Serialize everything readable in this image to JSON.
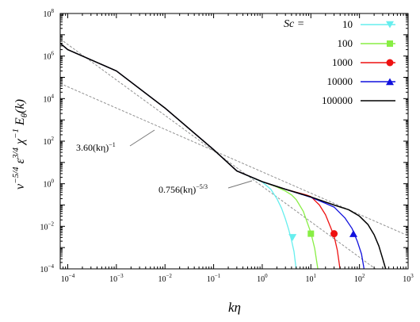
{
  "chart_data": {
    "type": "line",
    "xscale": "log",
    "yscale": "log",
    "xlim": [
      7e-05,
      1000
    ],
    "ylim": [
      0.0001,
      100000000
    ],
    "xlabel_main": "kη",
    "ylabel_parts": [
      "ν",
      "−5/4",
      " ε",
      "3/4",
      " χ",
      "−1",
      " E",
      "θ",
      "(k)"
    ],
    "x_ticks": [
      {
        "value": 0.0001,
        "base": "10",
        "exp": "−4"
      },
      {
        "value": 0.001,
        "base": "10",
        "exp": "−3"
      },
      {
        "value": 0.01,
        "base": "10",
        "exp": "−2"
      },
      {
        "value": 0.1,
        "base": "10",
        "exp": "−1"
      },
      {
        "value": 1,
        "base": "10",
        "exp": "0"
      },
      {
        "value": 10,
        "base": "10",
        "exp": "1"
      },
      {
        "value": 100,
        "base": "10",
        "exp": "2"
      },
      {
        "value": 1000,
        "base": "10",
        "exp": "3"
      }
    ],
    "y_ticks": [
      {
        "value": 0.0001,
        "base": "10",
        "exp": "−4"
      },
      {
        "value": 0.01,
        "base": "10",
        "exp": "−2"
      },
      {
        "value": 1,
        "base": "10",
        "exp": "0"
      },
      {
        "value": 100,
        "base": "10",
        "exp": "2"
      },
      {
        "value": 10000,
        "base": "10",
        "exp": "4"
      },
      {
        "value": 1000000,
        "base": "10",
        "exp": "6"
      },
      {
        "value": 100000000,
        "base": "10",
        "exp": "8"
      }
    ],
    "legend_title": "Sc =",
    "legend_position": "top-right",
    "reference_lines": [
      {
        "label_coef": "3.60(kη)",
        "label_exp": "−1",
        "coef": 3.6,
        "slope": -1,
        "color": "#909090",
        "dash": true
      },
      {
        "label_coef": "0.756(kη)",
        "label_exp": "−5/3",
        "coef": 0.756,
        "slope": -1.6667,
        "color": "#909090",
        "dash": true
      }
    ],
    "series": [
      {
        "name": "10",
        "color": "#66eeee",
        "marker": "triangle-down",
        "x": [
          7e-05,
          0.0001,
          0.001,
          0.01,
          0.1,
          0.3,
          1,
          1.5,
          2,
          2.5,
          3,
          3.5,
          4,
          4.5,
          5
        ],
        "y": [
          4000000,
          2000000,
          200000,
          3600,
          40,
          4,
          1.2,
          0.55,
          0.2,
          0.07,
          0.022,
          0.007,
          0.0022,
          0.00065,
          9e-05
        ],
        "marker_at": [
          4.2,
          0.003
        ]
      },
      {
        "name": "100",
        "color": "#88ee44",
        "marker": "square",
        "x": [
          7e-05,
          0.0001,
          0.001,
          0.01,
          0.1,
          0.3,
          1,
          2,
          3,
          4,
          5,
          7,
          10,
          12,
          14
        ],
        "y": [
          4000000,
          2000000,
          200000,
          3600,
          40,
          4,
          1.25,
          0.7,
          0.45,
          0.3,
          0.18,
          0.05,
          0.005,
          0.0009,
          9e-05
        ],
        "marker_at": [
          10,
          0.0045
        ]
      },
      {
        "name": "1000",
        "color": "#ee1111",
        "marker": "circle",
        "x": [
          7e-05,
          0.0001,
          0.001,
          0.01,
          0.1,
          0.3,
          1,
          3,
          5,
          8,
          10,
          15,
          20,
          25,
          30,
          35,
          40
        ],
        "y": [
          4000000,
          2000000,
          200000,
          3600,
          40,
          4,
          1.25,
          0.55,
          0.4,
          0.3,
          0.25,
          0.1,
          0.035,
          0.01,
          0.0035,
          0.00075,
          9e-05
        ],
        "marker_at": [
          30,
          0.0045
        ]
      },
      {
        "name": "10000",
        "color": "#1111dd",
        "marker": "triangle-up",
        "x": [
          7e-05,
          0.0001,
          0.001,
          0.01,
          0.1,
          0.3,
          1,
          3,
          10,
          20,
          30,
          50,
          70,
          90,
          110,
          125
        ],
        "y": [
          4000000,
          2000000,
          200000,
          3600,
          40,
          4,
          1.25,
          0.55,
          0.23,
          0.12,
          0.08,
          0.025,
          0.008,
          0.002,
          0.0005,
          9e-05
        ],
        "marker_at": [
          75,
          0.0045
        ]
      },
      {
        "name": "100000",
        "color": "#000000",
        "marker": "none",
        "x": [
          7e-05,
          0.0001,
          0.001,
          0.01,
          0.1,
          0.3,
          1,
          3,
          10,
          30,
          60,
          100,
          150,
          200,
          250,
          300,
          350
        ],
        "y": [
          4000000,
          2000000,
          200000,
          3600,
          40,
          4,
          1.25,
          0.55,
          0.24,
          0.1,
          0.06,
          0.03,
          0.012,
          0.004,
          0.0012,
          0.0003,
          9e-05
        ],
        "marker_at": null
      }
    ]
  }
}
